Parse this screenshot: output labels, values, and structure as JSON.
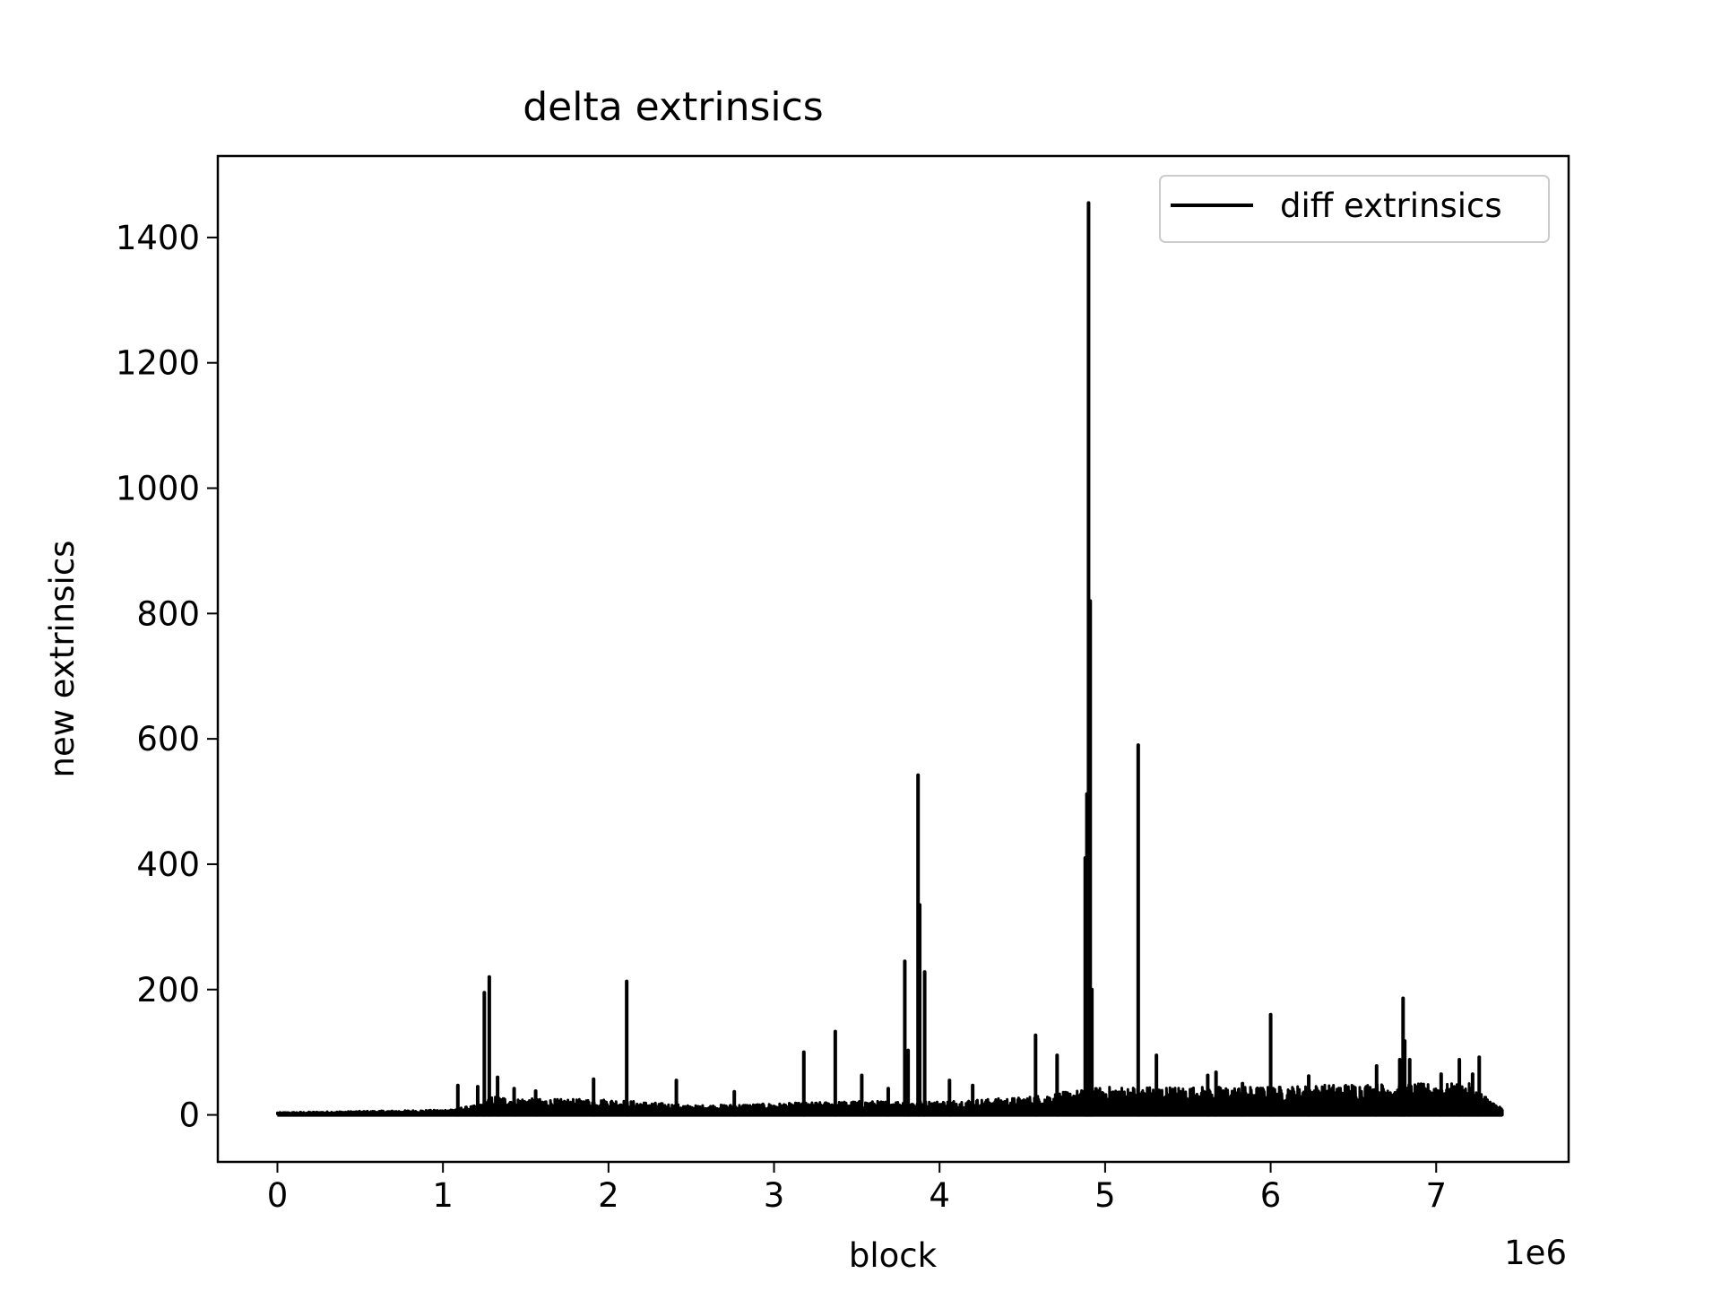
{
  "chart_data": {
    "type": "line",
    "title": "delta extrinsics",
    "xlabel": "block",
    "ylabel": "new extrinsics",
    "x_offset_label": "1e6",
    "xlim": [
      -360000,
      7800000
    ],
    "ylim": [
      -75,
      1530
    ],
    "x_ticks": [
      0,
      1000000,
      2000000,
      3000000,
      4000000,
      5000000,
      6000000,
      7000000
    ],
    "x_tick_labels": [
      "0",
      "1",
      "2",
      "3",
      "4",
      "5",
      "6",
      "7"
    ],
    "y_ticks": [
      0,
      200,
      400,
      600,
      800,
      1000,
      1200,
      1400
    ],
    "y_tick_labels": [
      "0",
      "200",
      "400",
      "600",
      "800",
      "1000",
      "1200",
      "1400"
    ],
    "grid": false,
    "legend_position": "top-right",
    "series": [
      {
        "name": "diff extrinsics",
        "color": "#000000",
        "x_range": [
          0,
          7400000
        ],
        "baseline_envelope": [
          [
            0,
            4
          ],
          [
            500000,
            6
          ],
          [
            1000000,
            8
          ],
          [
            1200000,
            15
          ],
          [
            1300000,
            30
          ],
          [
            1600000,
            25
          ],
          [
            2000000,
            25
          ],
          [
            2500000,
            15
          ],
          [
            3000000,
            18
          ],
          [
            3500000,
            22
          ],
          [
            4000000,
            22
          ],
          [
            4500000,
            28
          ],
          [
            5000000,
            45
          ],
          [
            5500000,
            45
          ],
          [
            6000000,
            45
          ],
          [
            6500000,
            50
          ],
          [
            7000000,
            50
          ],
          [
            7200000,
            50
          ],
          [
            7400000,
            10
          ]
        ],
        "peaks": [
          [
            1090000,
            47
          ],
          [
            1210000,
            45
          ],
          [
            1250000,
            195
          ],
          [
            1280000,
            220
          ],
          [
            1330000,
            60
          ],
          [
            1430000,
            42
          ],
          [
            1560000,
            38
          ],
          [
            1910000,
            57
          ],
          [
            2110000,
            213
          ],
          [
            2410000,
            55
          ],
          [
            2760000,
            37
          ],
          [
            3180000,
            100
          ],
          [
            3370000,
            133
          ],
          [
            3530000,
            63
          ],
          [
            3690000,
            42
          ],
          [
            3790000,
            245
          ],
          [
            3810000,
            103
          ],
          [
            3870000,
            542
          ],
          [
            3880000,
            335
          ],
          [
            3910000,
            228
          ],
          [
            4060000,
            55
          ],
          [
            4200000,
            47
          ],
          [
            4580000,
            127
          ],
          [
            4710000,
            95
          ],
          [
            4880000,
            410
          ],
          [
            4890000,
            512
          ],
          [
            4900000,
            1455
          ],
          [
            4910000,
            820
          ],
          [
            4920000,
            200
          ],
          [
            5200000,
            590
          ],
          [
            5310000,
            95
          ],
          [
            5620000,
            63
          ],
          [
            5670000,
            68
          ],
          [
            5830000,
            50
          ],
          [
            6000000,
            160
          ],
          [
            6230000,
            62
          ],
          [
            6640000,
            78
          ],
          [
            6780000,
            88
          ],
          [
            6800000,
            186
          ],
          [
            6810000,
            118
          ],
          [
            6840000,
            88
          ],
          [
            7030000,
            65
          ],
          [
            7140000,
            88
          ],
          [
            7220000,
            65
          ],
          [
            7260000,
            92
          ]
        ]
      }
    ]
  }
}
